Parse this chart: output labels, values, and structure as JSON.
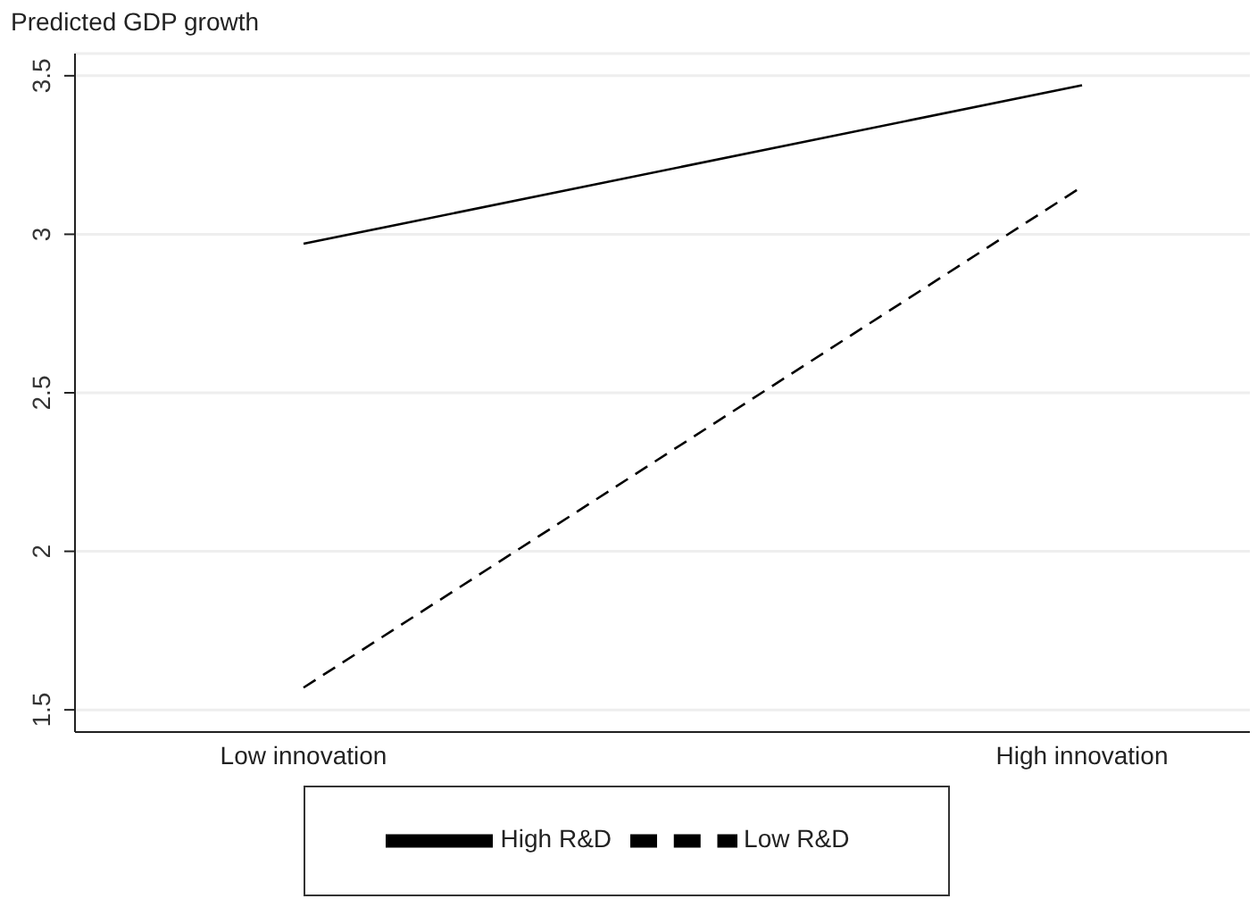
{
  "chart_data": {
    "type": "line",
    "ylabel": "Predicted GDP growth",
    "categories": [
      "Low innovation",
      "High innovation"
    ],
    "series": [
      {
        "name": "Low R&D",
        "color": "#000000",
        "line_style": "dashed",
        "values": [
          1.57,
          3.15
        ]
      },
      {
        "name": "High R&D",
        "color": "#000000",
        "line_style": "solid",
        "values": [
          2.97,
          3.47
        ]
      }
    ],
    "ylim": [
      1.43,
      3.57
    ],
    "yticks": [
      1.5,
      2,
      2.5,
      3,
      3.5
    ],
    "grid": "y",
    "legend": "bottom",
    "marker": "none"
  }
}
